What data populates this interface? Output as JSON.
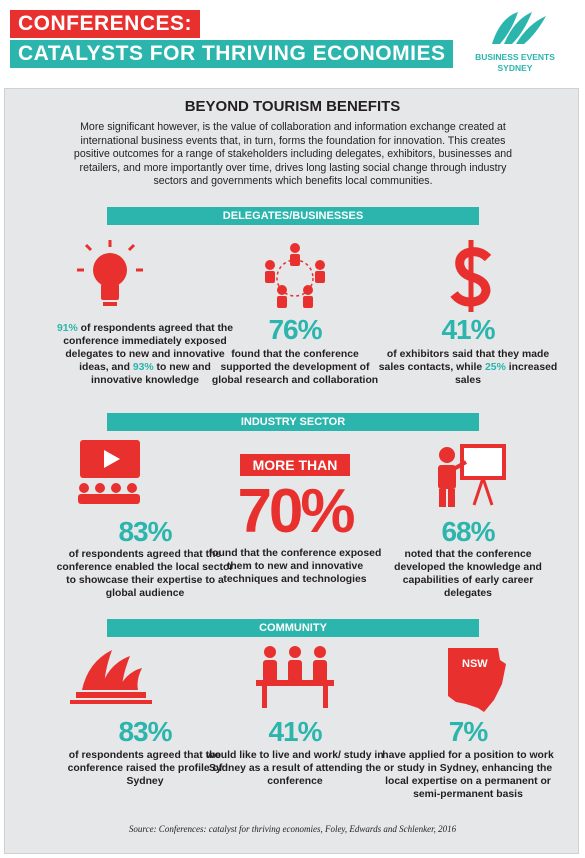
{
  "header": {
    "title_line1": "CONFERENCES:",
    "title_line2": "CATALYSTS FOR THRIVING ECONOMIES",
    "logo_text": [
      "BUSINESS EVENTS",
      "SYDNEY"
    ]
  },
  "intro": {
    "title": "BEYOND TOURISM BENEFITS",
    "text": "More significant however, is the value of collaboration and information exchange created at international business events that, in turn, forms the foundation for innovation. This creates positive outcomes for a range of stakeholders including delegates, exhibitors, businesses and retailers, and more importantly over time, drives long lasting social change through industry sectors and governments which benefits local communities."
  },
  "sections": [
    {
      "title": "DELEGATES/BUSINESSES",
      "items": [
        {
          "description": [
            {
              "text": "91%",
              "color": "#2bb5ad"
            },
            {
              "text": " of respondents agreed that the conference immediately exposed delegates to new and innovative ideas, and "
            },
            {
              "text": "93%",
              "color": "#2bb5ad"
            },
            {
              "text": " to new and innovative knowledge"
            }
          ]
        },
        {
          "stat": "76%",
          "description": [
            {
              "text": "found that the conference supported the development of global research and collaboration"
            }
          ]
        },
        {
          "stat": "41%",
          "description": [
            {
              "text": "of exhibitors said that they made sales contacts, while "
            },
            {
              "text": "25%",
              "color": "#2bb5ad"
            },
            {
              "text": " increased sales"
            }
          ]
        }
      ]
    },
    {
      "title": "INDUSTRY SECTOR",
      "items": [
        {
          "stat": "83%",
          "description": [
            {
              "text": "of respondents agreed that the conference enabled the local sector to showcase their expertise to a global audience"
            }
          ]
        },
        {
          "label": "MORE THAN",
          "stat": "70%",
          "description": [
            {
              "text": "found that the conference exposed them to new and innovative techniques and technologies"
            }
          ]
        },
        {
          "stat": "68%",
          "description": [
            {
              "text": "noted that the conference developed the knowledge and capabilities of early career delegates"
            }
          ]
        }
      ]
    },
    {
      "title": "COMMUNITY",
      "items": [
        {
          "stat": "83%",
          "description": [
            {
              "text": "of respondents agreed that the conference raised the profile of Sydney"
            }
          ]
        },
        {
          "stat": "41%",
          "description": [
            {
              "text": "would like to live and work/ study in Sydney as a result of attending the conference"
            }
          ]
        },
        {
          "map_label": "NSW",
          "stat": "7%",
          "description": [
            {
              "text": "have applied for a position to work or study in Sydney, enhancing the local expertise on a permanent or semi-permanent basis"
            }
          ]
        }
      ]
    }
  ],
  "source": "Source: Conferences: catalyst for thriving economies, Foley, Edwards and Schlenker, 2016"
}
